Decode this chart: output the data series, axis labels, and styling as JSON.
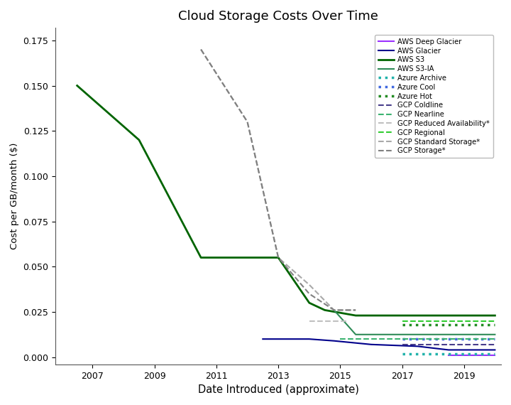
{
  "title": "Cloud Storage Costs Over Time",
  "xlabel": "Date Introduced (approximate)",
  "ylabel": "Cost per GB/month ($)",
  "xlim": [
    2005.8,
    2020.2
  ],
  "ylim": [
    -0.004,
    0.182
  ],
  "yticks": [
    0.0,
    0.025,
    0.05,
    0.075,
    0.1,
    0.125,
    0.15,
    0.175
  ],
  "xticks": [
    2007,
    2009,
    2011,
    2013,
    2015,
    2017,
    2019
  ],
  "series": [
    {
      "name": "AWS Deep Glacier",
      "color": "#9B30FF",
      "linestyle": "solid",
      "linewidth": 1.5,
      "x": [
        2018.5,
        2020.0
      ],
      "y": [
        0.00099,
        0.00099
      ]
    },
    {
      "name": "AWS Glacier",
      "color": "#00008B",
      "linestyle": "solid",
      "linewidth": 1.5,
      "x": [
        2012.5,
        2013.0,
        2014.0,
        2014.8,
        2016.0,
        2017.5,
        2018.5,
        2020.0
      ],
      "y": [
        0.01,
        0.01,
        0.01,
        0.009,
        0.007,
        0.006,
        0.004,
        0.004
      ]
    },
    {
      "name": "AWS S3",
      "color": "#006400",
      "linestyle": "solid",
      "linewidth": 2.0,
      "x": [
        2006.5,
        2008.5,
        2010.5,
        2012.5,
        2012.5,
        2013.0,
        2014.0,
        2014.5,
        2015.5,
        2020.0
      ],
      "y": [
        0.15,
        0.12,
        0.055,
        0.055,
        0.055,
        0.055,
        0.03,
        0.026,
        0.023,
        0.023
      ]
    },
    {
      "name": "AWS S3-IA",
      "color": "#2E8B57",
      "linestyle": "solid",
      "linewidth": 1.5,
      "x": [
        2014.8,
        2015.5,
        2020.0
      ],
      "y": [
        0.026,
        0.0125,
        0.0125
      ]
    },
    {
      "name": "Azure Archive",
      "color": "#20B2AA",
      "linestyle": "dotted",
      "linewidth": 2.5,
      "x": [
        2017.0,
        2020.0
      ],
      "y": [
        0.002,
        0.002
      ]
    },
    {
      "name": "Azure Cool",
      "color": "#4169E1",
      "linestyle": "dotted",
      "linewidth": 2.5,
      "x": [
        2017.0,
        2020.0
      ],
      "y": [
        0.01,
        0.01
      ]
    },
    {
      "name": "Azure Hot",
      "color": "#228B22",
      "linestyle": "dotted",
      "linewidth": 2.5,
      "x": [
        2017.0,
        2020.0
      ],
      "y": [
        0.018,
        0.018
      ]
    },
    {
      "name": "GCP Coldline",
      "color": "#483D8B",
      "linestyle": "dashed",
      "linewidth": 1.5,
      "x": [
        2017.0,
        2020.0
      ],
      "y": [
        0.007,
        0.007
      ]
    },
    {
      "name": "GCP Nearline",
      "color": "#3CB371",
      "linestyle": "dashed",
      "linewidth": 1.5,
      "x": [
        2015.0,
        2020.0
      ],
      "y": [
        0.01,
        0.01
      ]
    },
    {
      "name": "GCP Reduced Availability*",
      "color": "#C0C0C0",
      "linestyle": "dashed",
      "linewidth": 1.5,
      "x": [
        2014.0,
        2015.2
      ],
      "y": [
        0.02,
        0.02
      ]
    },
    {
      "name": "GCP Regional",
      "color": "#32CD32",
      "linestyle": "dashed",
      "linewidth": 1.5,
      "x": [
        2017.0,
        2020.0
      ],
      "y": [
        0.02,
        0.02
      ]
    },
    {
      "name": "GCP Standard Storage*",
      "color": "#A9A9A9",
      "linestyle": "dashed",
      "linewidth": 1.5,
      "x": [
        2010.5,
        2012.0,
        2013.0,
        2014.0,
        2014.8,
        2015.5
      ],
      "y": [
        0.17,
        0.13,
        0.055,
        0.04,
        0.026,
        0.026
      ]
    },
    {
      "name": "GCP Storage*",
      "color": "#808080",
      "linestyle": "dashed",
      "linewidth": 1.5,
      "x": [
        2010.5,
        2012.0,
        2013.0,
        2014.0,
        2014.8,
        2015.5
      ],
      "y": [
        0.17,
        0.13,
        0.055,
        0.035,
        0.026,
        0.026
      ]
    }
  ],
  "legend": [
    {
      "name": "AWS Deep Glacier",
      "color": "#9B30FF",
      "linestyle": "-",
      "linewidth": 1.5
    },
    {
      "name": "AWS Glacier",
      "color": "#00008B",
      "linestyle": "-",
      "linewidth": 1.5
    },
    {
      "name": "AWS S3",
      "color": "#006400",
      "linestyle": "-",
      "linewidth": 2.0
    },
    {
      "name": "AWS S3-IA",
      "color": "#2E8B57",
      "linestyle": "-",
      "linewidth": 1.5
    },
    {
      "name": "Azure Archive",
      "color": "#20B2AA",
      "linestyle": ":",
      "linewidth": 2.5
    },
    {
      "name": "Azure Cool",
      "color": "#4169E1",
      "linestyle": ":",
      "linewidth": 2.5
    },
    {
      "name": "Azure Hot",
      "color": "#228B22",
      "linestyle": ":",
      "linewidth": 2.5
    },
    {
      "name": "GCP Coldline",
      "color": "#483D8B",
      "linestyle": "--",
      "linewidth": 1.5
    },
    {
      "name": "GCP Nearline",
      "color": "#3CB371",
      "linestyle": "--",
      "linewidth": 1.5
    },
    {
      "name": "GCP Reduced Availability*",
      "color": "#C0C0C0",
      "linestyle": "--",
      "linewidth": 1.5
    },
    {
      "name": "GCP Regional",
      "color": "#32CD32",
      "linestyle": "--",
      "linewidth": 1.5
    },
    {
      "name": "GCP Standard Storage*",
      "color": "#A9A9A9",
      "linestyle": "--",
      "linewidth": 1.5
    },
    {
      "name": "GCP Storage*",
      "color": "#808080",
      "linestyle": "--",
      "linewidth": 1.5
    }
  ]
}
